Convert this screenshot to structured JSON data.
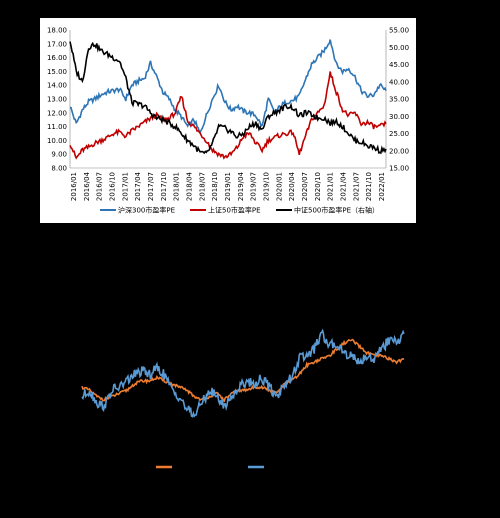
{
  "chart_data": [
    {
      "type": "line",
      "title": "",
      "x_ticks": [
        "2016/01",
        "2016/04",
        "2016/07",
        "2016/10",
        "2017/01",
        "2017/04",
        "2017/07",
        "2017/10",
        "2018/01",
        "2018/04",
        "2018/07",
        "2018/10",
        "2019/01",
        "2019/04",
        "2019/07",
        "2019/10",
        "2020/01",
        "2020/04",
        "2020/07",
        "2020/10",
        "2021/01",
        "2021/04",
        "2021/07",
        "2021/10",
        "2022/01"
      ],
      "y_left": {
        "lim": [
          8,
          18
        ],
        "ticks": [
          "8.00",
          "9.00",
          "10.00",
          "11.00",
          "12.00",
          "13.00",
          "14.00",
          "15.00",
          "16.00",
          "17.00",
          "18.00"
        ]
      },
      "y_right": {
        "lim": [
          15,
          55
        ],
        "ticks": [
          "15.00",
          "20.00",
          "25.00",
          "30.00",
          "35.00",
          "40.00",
          "45.00",
          "50.00",
          "55.00"
        ]
      },
      "grid": false,
      "legend_position": "bottom",
      "series": [
        {
          "name": "沪深300市盈率PE",
          "axis": "left",
          "color": "#2E75B6",
          "values": [
            12.5,
            11.2,
            12.2,
            12.8,
            13.0,
            13.3,
            13.5,
            13.6,
            13.7,
            13.0,
            14.0,
            14.3,
            14.5,
            15.6,
            14.6,
            13.5,
            13.0,
            12.2,
            11.7,
            11.0,
            11.5,
            10.5,
            11.8,
            13.0,
            14.0,
            12.8,
            12.2,
            12.5,
            12.1,
            12.0,
            11.8,
            11.0,
            13.0,
            12.0,
            12.5,
            12.8,
            12.9,
            13.2,
            14.4,
            15.5,
            16.0,
            16.5,
            17.3,
            15.5,
            15.0,
            15.2,
            14.6,
            13.6,
            13.2,
            13.3,
            14.0,
            13.6
          ]
        },
        {
          "name": "上证50市盈率PE",
          "axis": "left",
          "color": "#C00000",
          "values": [
            9.8,
            8.7,
            9.3,
            9.5,
            9.8,
            10.0,
            10.2,
            10.5,
            10.6,
            10.3,
            10.7,
            11.0,
            11.3,
            11.6,
            11.8,
            11.5,
            11.6,
            12.0,
            13.2,
            11.4,
            11.0,
            10.5,
            10.0,
            9.3,
            9.0,
            8.8,
            9.0,
            9.5,
            10.3,
            10.5,
            9.8,
            9.3,
            10.0,
            10.2,
            10.4,
            10.5,
            10.6,
            9.0,
            10.3,
            11.5,
            12.0,
            12.5,
            14.9,
            13.5,
            12.2,
            11.8,
            12.0,
            11.2,
            11.3,
            11.0,
            11.0,
            11.2
          ]
        },
        {
          "name": "中证500市盈率PE（右轴）",
          "axis": "right",
          "color": "#000000",
          "values": [
            52.0,
            43.0,
            40.0,
            50.0,
            51.0,
            49.0,
            48.0,
            47.0,
            46.0,
            41.0,
            34.0,
            33.5,
            33.0,
            31.0,
            29.5,
            29.0,
            28.0,
            27.0,
            25.0,
            23.0,
            21.5,
            19.5,
            19.0,
            22.0,
            27.0,
            26.5,
            25.5,
            24.0,
            25.0,
            27.0,
            28.0,
            26.0,
            30.0,
            31.0,
            32.0,
            33.0,
            32.5,
            30.0,
            31.0,
            30.5,
            29.5,
            29.5,
            28.0,
            28.5,
            27.0,
            25.0,
            23.0,
            22.5,
            21.5,
            21.0,
            20.0,
            20.5
          ]
        }
      ]
    },
    {
      "type": "line",
      "title": "",
      "axes_visible": false,
      "legend_position": "bottom",
      "series": [
        {
          "color": "#ED7D31",
          "values": [
            53,
            52,
            50,
            49,
            50,
            51,
            52,
            54,
            55,
            55,
            56,
            55,
            54,
            53,
            52,
            50,
            49,
            50,
            51,
            49,
            51,
            52,
            52,
            53,
            53,
            52,
            51,
            54,
            55,
            57,
            60,
            61,
            62,
            63,
            65,
            67,
            68,
            66,
            64,
            63,
            63,
            62,
            61,
            62
          ]
        },
        {
          "color": "#5B9BD5",
          "values": [
            50,
            52,
            48,
            47,
            52,
            53,
            55,
            57,
            58,
            57,
            59,
            57,
            52,
            50,
            46,
            44,
            48,
            52,
            50,
            47,
            50,
            53,
            55,
            54,
            56,
            53,
            50,
            54,
            56,
            62,
            63,
            65,
            70,
            66,
            67,
            64,
            63,
            61,
            63,
            62,
            65,
            68,
            67,
            70
          ]
        }
      ]
    }
  ]
}
